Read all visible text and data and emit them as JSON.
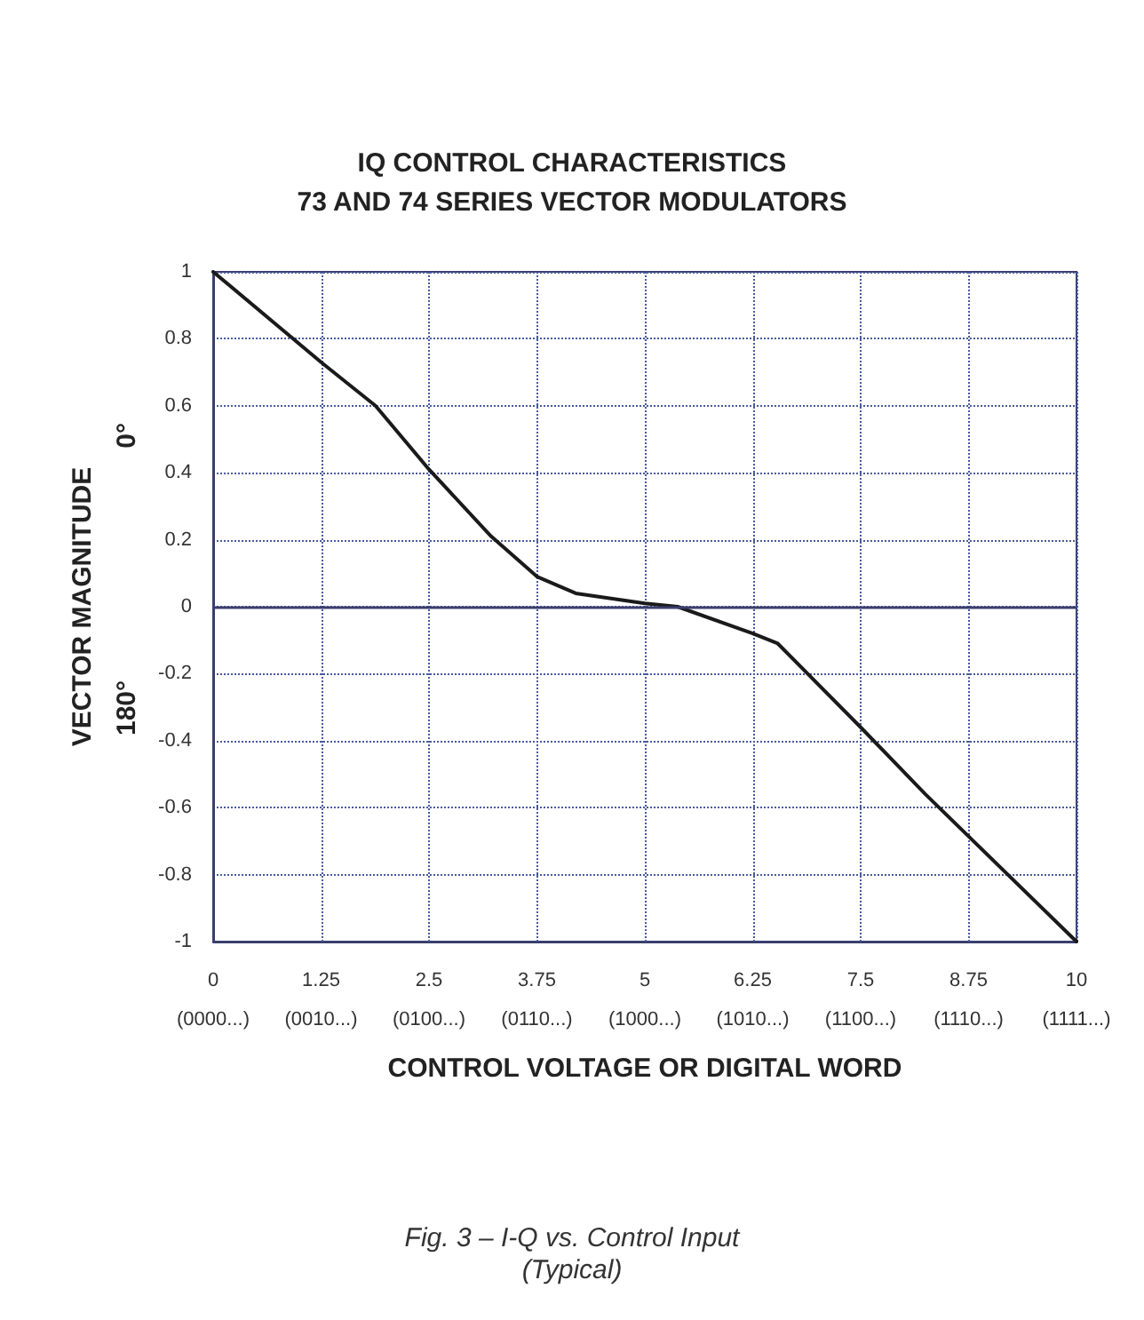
{
  "chart_data": {
    "type": "line",
    "title": "IQ CONTROL CHARACTERISTICS\n73 AND 74 SERIES VECTOR MODULATORS",
    "xlabel": "CONTROL VOLTAGE OR DIGITAL WORD",
    "ylabel": "VECTOR MAGNITUDE",
    "annotations": [
      "0°",
      "180°",
      "Fig. 3 – I-Q vs. Control Input\n(Typical)",
      "(0000...)",
      "(0010...)",
      "(0100...)",
      "(0110...)",
      "(1000...)",
      "(1010...)",
      "(1100...)",
      "(1110...)",
      "(1111...)"
    ],
    "x": [
      0,
      1.25,
      1.88,
      2.5,
      3.22,
      3.75,
      4.2,
      5,
      5.38,
      6.25,
      6.54,
      7.5,
      8.25,
      10
    ],
    "series": [
      {
        "color": "#1a1a1a",
        "values": [
          1,
          0.73,
          0.6,
          0.41,
          0.21,
          0.09,
          0.04,
          0.01,
          0,
          -0.08,
          -0.11,
          -0.36,
          -0.56,
          -1
        ]
      }
    ],
    "xlim": [
      0,
      10
    ],
    "ylim": [
      -1,
      1
    ],
    "xticks": [
      0,
      1.25,
      2.5,
      3.75,
      5,
      6.25,
      7.5,
      8.75,
      10
    ],
    "yticks": [
      -1,
      -0.8,
      -0.6,
      -0.4,
      -0.2,
      0,
      0.2,
      0.4,
      0.6,
      0.8,
      1
    ],
    "ref_lines": [
      {
        "axis": "y",
        "value": 0,
        "color": "#3a3f6e",
        "line_style": "solid"
      }
    ],
    "grid": true,
    "marker": "none",
    "line_style": "solid"
  }
}
